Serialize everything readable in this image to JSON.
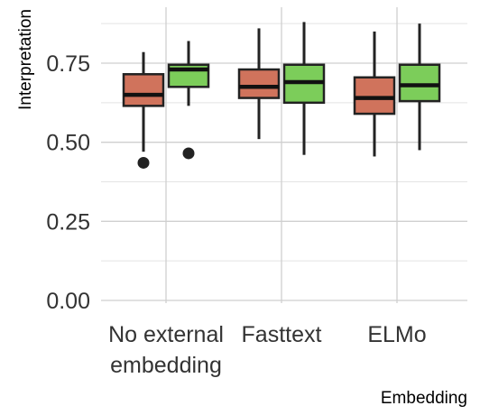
{
  "chart_data": {
    "type": "boxplot",
    "xlabel": "Embedding",
    "ylabel": "Interpretation",
    "ylim": [
      0,
      0.88
    ],
    "yticks": [
      "0.00",
      "0.25",
      "0.50",
      "0.75"
    ],
    "grid": true,
    "legend": "none",
    "categories": [
      {
        "line1": "No external",
        "line2": "embedding"
      },
      {
        "line1": "Fasttext",
        "line2": ""
      },
      {
        "line1": "ELMo",
        "line2": ""
      }
    ],
    "series": [
      {
        "color": "#d0735c",
        "boxes": [
          {
            "min": 0.47,
            "q1": 0.615,
            "median": 0.65,
            "q3": 0.715,
            "max": 0.785,
            "outliers": [
              0.435
            ]
          },
          {
            "min": 0.51,
            "q1": 0.64,
            "median": 0.675,
            "q3": 0.73,
            "max": 0.86,
            "outliers": []
          },
          {
            "min": 0.455,
            "q1": 0.59,
            "median": 0.64,
            "q3": 0.705,
            "max": 0.85,
            "outliers": []
          }
        ]
      },
      {
        "color": "#7ccd5a",
        "boxes": [
          {
            "min": 0.615,
            "q1": 0.675,
            "median": 0.73,
            "q3": 0.745,
            "max": 0.82,
            "outliers": [
              0.465
            ]
          },
          {
            "min": 0.46,
            "q1": 0.625,
            "median": 0.69,
            "q3": 0.745,
            "max": 0.88,
            "outliers": []
          },
          {
            "min": 0.475,
            "q1": 0.63,
            "median": 0.68,
            "q3": 0.745,
            "max": 0.875,
            "outliers": []
          }
        ]
      }
    ]
  }
}
